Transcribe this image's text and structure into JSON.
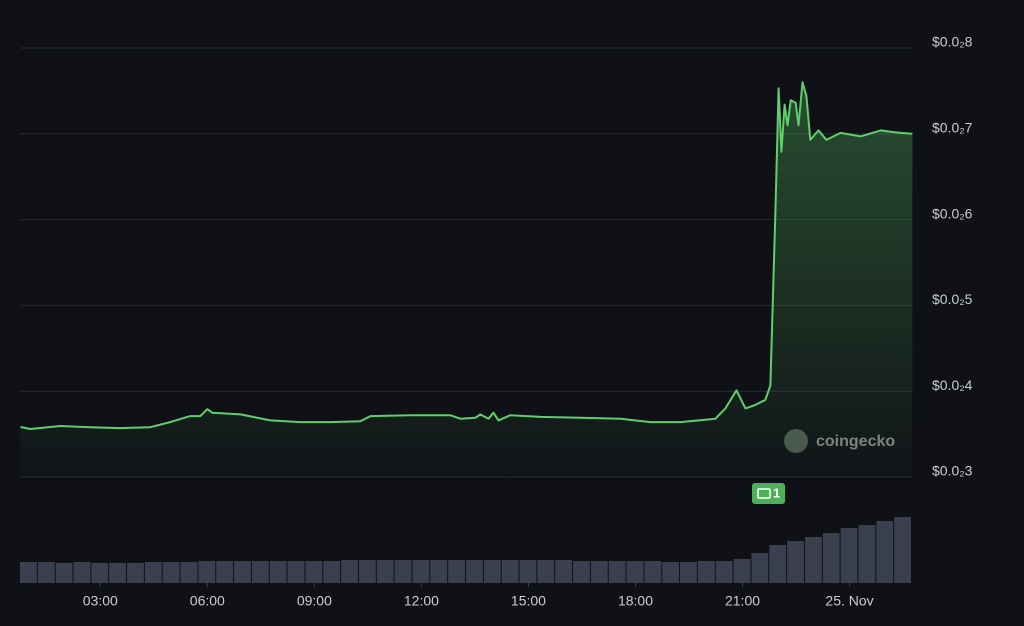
{
  "chart_data": {
    "type": "line",
    "x": [
      0.76,
      1.04,
      1.88,
      2.72,
      3.56,
      4.4,
      4.96,
      5.52,
      5.8,
      6.0,
      6.14,
      6.93,
      7.77,
      8.61,
      9.45,
      10.29,
      10.57,
      11.69,
      12.81,
      13.09,
      13.51,
      13.65,
      13.88,
      14.02,
      14.16,
      14.49,
      15.34,
      16.46,
      17.58,
      18.42,
      19.26,
      20.24,
      20.52,
      20.83,
      21.08,
      21.36,
      21.64,
      21.78,
      21.92,
      22.01,
      22.09,
      22.18,
      22.26,
      22.35,
      22.49,
      22.57,
      22.68,
      22.79,
      22.9,
      23.13,
      23.35,
      23.75,
      24.31,
      24.87,
      25.43,
      25.76
    ],
    "series": [
      {
        "name": "price",
        "color": "#5fcf6b",
        "values": [
          0.003583,
          0.00356,
          0.003594,
          0.00358,
          0.00357,
          0.00358,
          0.00364,
          0.00371,
          0.00371,
          0.00379,
          0.00375,
          0.00373,
          0.00366,
          0.00364,
          0.00364,
          0.00365,
          0.00371,
          0.00372,
          0.00372,
          0.00368,
          0.00369,
          0.00373,
          0.00368,
          0.00375,
          0.00366,
          0.00372,
          0.0037,
          0.00369,
          0.00368,
          0.00364,
          0.00364,
          0.00368,
          0.0038,
          0.00401,
          0.0038,
          0.00384,
          0.0039,
          0.00407,
          0.00605,
          0.00753,
          0.00679,
          0.00734,
          0.0071,
          0.00739,
          0.00736,
          0.0071,
          0.0076,
          0.00744,
          0.00693,
          0.00704,
          0.00693,
          0.00701,
          0.00697,
          0.00704,
          0.00701,
          0.007
        ]
      }
    ],
    "volume": {
      "color": "#3a404d",
      "x": [
        1,
        1.5,
        2,
        2.5,
        3,
        3.5,
        4,
        4.5,
        5,
        5.5,
        6,
        6.5,
        7,
        7.5,
        8,
        8.5,
        9,
        9.5,
        10,
        10.5,
        11,
        11.5,
        12,
        12.5,
        13,
        13.5,
        14,
        14.5,
        15,
        15.5,
        16,
        16.5,
        17,
        17.5,
        18,
        18.5,
        19,
        19.5,
        20,
        20.5,
        21,
        21.5,
        22,
        22.5,
        23,
        23.5,
        24,
        24.5,
        25,
        25.5
      ],
      "values": [
        21,
        21,
        20,
        21,
        20,
        20,
        20,
        21,
        21,
        21,
        22,
        22,
        22,
        22,
        22,
        22,
        22,
        22,
        23,
        23,
        23,
        23,
        23,
        23,
        23,
        23,
        23,
        23,
        23,
        23,
        23,
        22,
        22,
        22,
        22,
        22,
        21,
        21,
        22,
        22,
        24,
        30,
        38,
        42,
        46,
        50,
        55,
        58,
        62,
        66
      ]
    },
    "xlim": [
      0.75,
      25.75
    ],
    "xticks": [
      {
        "value": 3,
        "label": "03:00"
      },
      {
        "value": 6,
        "label": "06:00"
      },
      {
        "value": 9,
        "label": "09:00"
      },
      {
        "value": 12,
        "label": "12:00"
      },
      {
        "value": 15,
        "label": "15:00"
      },
      {
        "value": 18,
        "label": "18:00"
      },
      {
        "value": 21,
        "label": "21:00"
      },
      {
        "value": 24,
        "label": "25. Nov"
      }
    ],
    "ylim": [
      0.003,
      0.008
    ],
    "yticks": [
      {
        "value": 0.003,
        "label": "$0.0₂3"
      },
      {
        "value": 0.004,
        "label": "$0.0₂4"
      },
      {
        "value": 0.005,
        "label": "$0.0₂5"
      },
      {
        "value": 0.006,
        "label": "$0.0₂6"
      },
      {
        "value": 0.007,
        "label": "$0.0₂7"
      },
      {
        "value": 0.008,
        "label": "$0.0₂8"
      }
    ],
    "y2lim": [
      0,
      100
    ],
    "grid": true,
    "annotation": "1",
    "watermark": "coingecko"
  }
}
